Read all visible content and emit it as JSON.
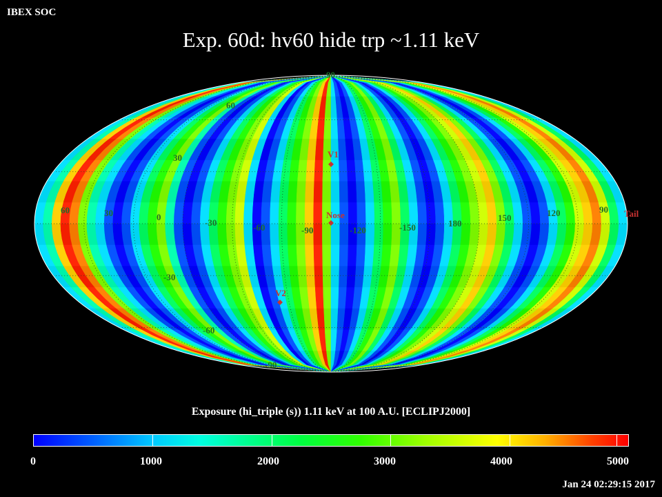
{
  "header": {
    "org": "IBEX SOC",
    "title": "Exp.   60d: hv60 hide trp ~1.11 keV"
  },
  "map": {
    "projection": "Mollweide",
    "frame": "ECLIPJ2000",
    "lon_labels": [
      "60",
      "30",
      "0",
      "-30",
      "-60",
      "-90",
      "-120",
      "-150",
      "180",
      "150",
      "120",
      "90"
    ],
    "lat_labels": [
      "90",
      "60",
      "30",
      "-30",
      "-60",
      "-90"
    ],
    "markers": [
      {
        "name": "V1",
        "color": "#c83232"
      },
      {
        "name": "Nose",
        "color": "#c83232"
      },
      {
        "name": "V2",
        "color": "#c83232"
      },
      {
        "name": "Tail",
        "color": "#c83232"
      }
    ],
    "colormap": {
      "low": "#0000ff",
      "mid": "#00ff60",
      "high": "#ff0000"
    }
  },
  "colorbar": {
    "caption": "Exposure (hi_triple (s))  1.11 keV at 100 A.U. [ECLIPJ2000]",
    "min": 0,
    "max": 5000,
    "tick_labels": [
      "0",
      "1000",
      "2000",
      "3000",
      "4000",
      "5000"
    ]
  },
  "footer": {
    "timestamp": "Jan 24 02:29:15 2017"
  }
}
